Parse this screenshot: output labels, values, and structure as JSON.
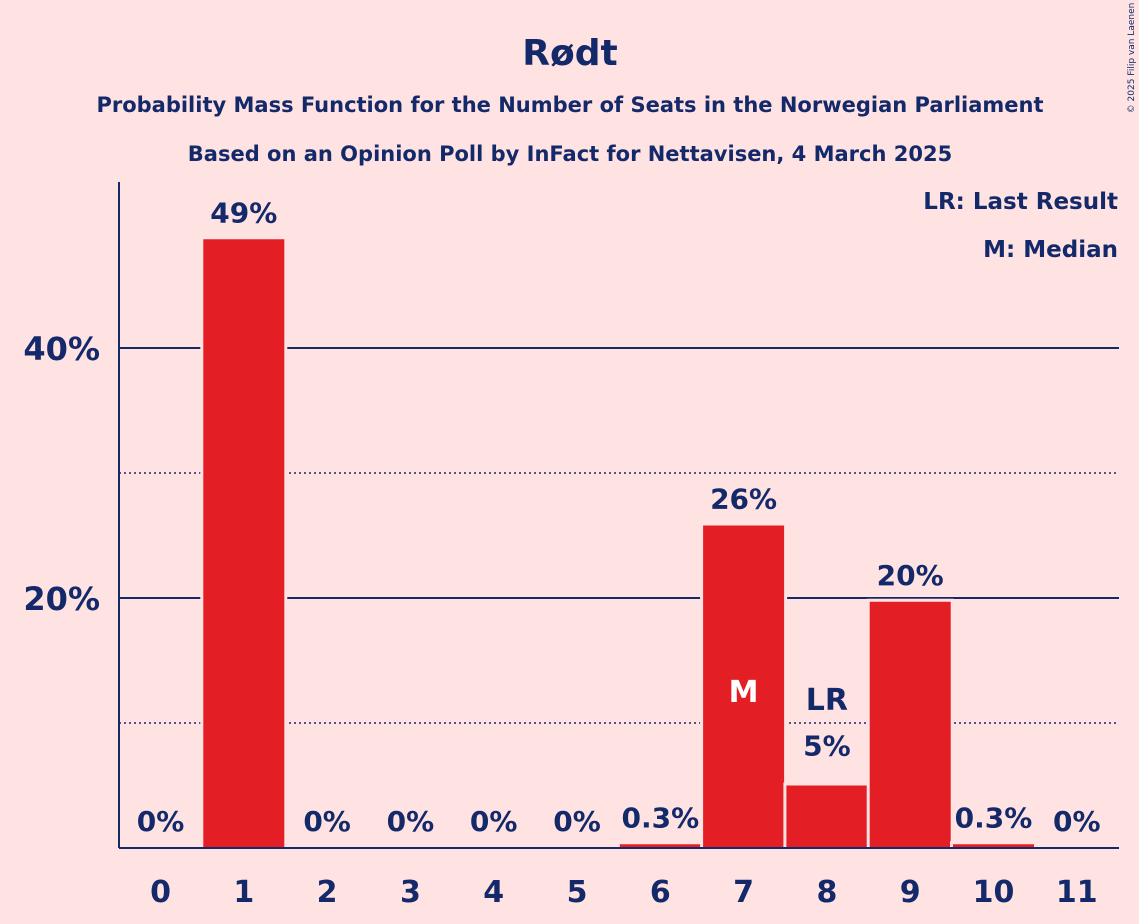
{
  "chart_data": {
    "type": "bar",
    "title": "Rødt",
    "subtitle_line1": "Probability Mass Function for the Number of Seats in the Norwegian Parliament",
    "subtitle_line2": "Based on an Opinion Poll by InFact for Nettavisen, 4 March 2025",
    "copyright": "© 2025 Filip van Laenen",
    "legend": [
      "LR: Last Result",
      "M: Median"
    ],
    "legend_placement": "top-right",
    "categories": [
      "0",
      "1",
      "2",
      "3",
      "4",
      "5",
      "6",
      "7",
      "8",
      "9",
      "10",
      "11"
    ],
    "values": [
      0,
      48.7,
      0,
      0,
      0,
      0,
      0.3,
      25.8,
      5.0,
      19.7,
      0.3,
      0
    ],
    "value_labels": [
      "0%",
      "49%",
      "0%",
      "0%",
      "0%",
      "0%",
      "0.3%",
      "26%",
      "5%",
      "20%",
      "0.3%",
      "0%"
    ],
    "median_index": 7,
    "median_marker": "M",
    "last_result_index": 8,
    "last_result_marker": "LR",
    "ylim": [
      0,
      53.2
    ],
    "yticks_major": [
      20,
      40
    ],
    "ytick_labels": [
      "20%",
      "40%"
    ],
    "yticks_minor": [
      10,
      30
    ],
    "grid": true,
    "colors": {
      "background": "#FFE2E2",
      "bar": "#E31E24",
      "text": "#13296A",
      "axis": "#13296A"
    }
  }
}
